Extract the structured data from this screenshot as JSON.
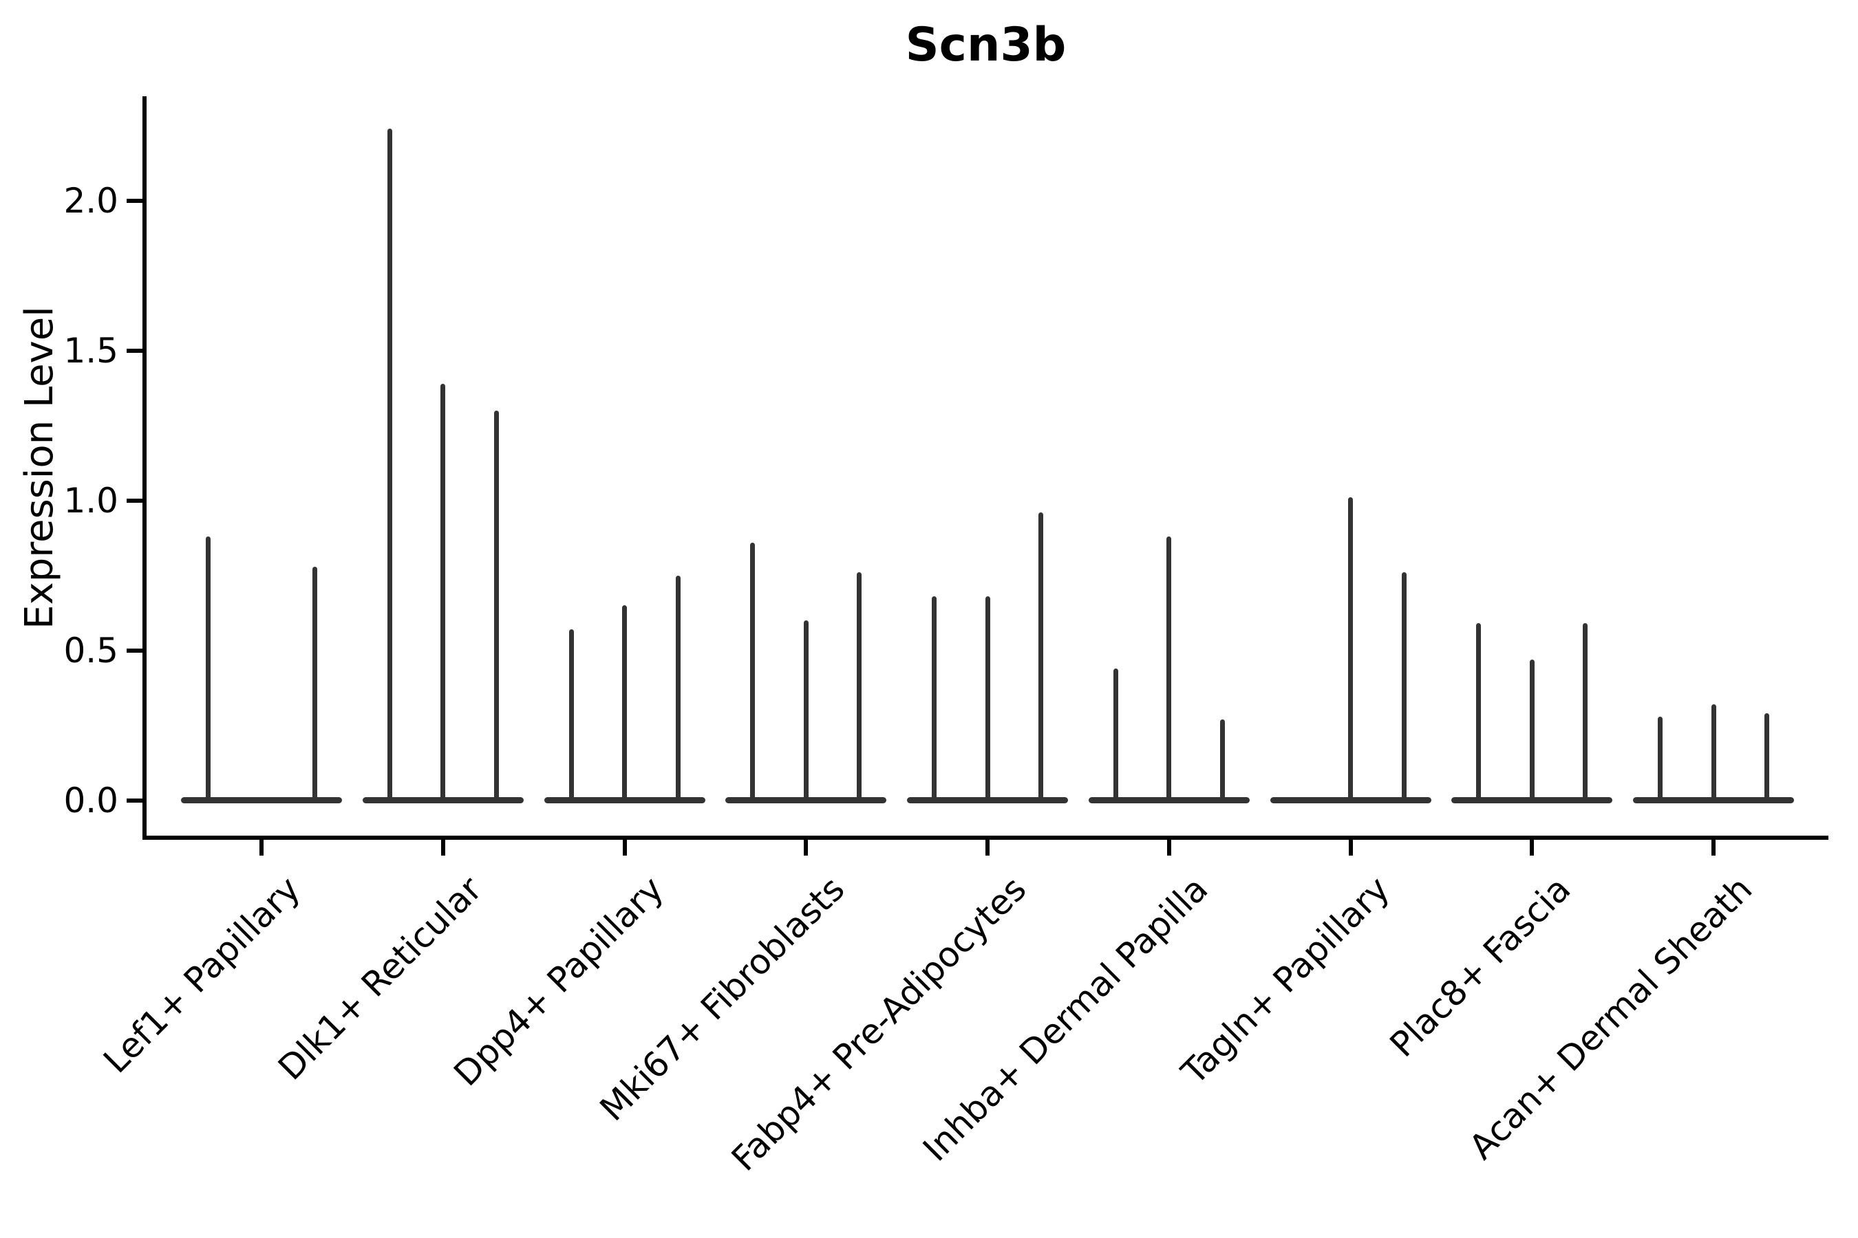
{
  "page": {
    "background": "#ffffff"
  },
  "chart_data": {
    "type": "violin",
    "title": "Scn3b",
    "ylabel": "Expression Level",
    "xlabel": "",
    "yticks": [
      "0.0",
      "0.5",
      "1.0",
      "1.5",
      "2.0"
    ],
    "ylim": [
      -0.11,
      2.35
    ],
    "grid": false,
    "legend": "none",
    "violins_per_category": 3,
    "categories": [
      "Lef1+ Papillary",
      "Dlk1+ Reticular",
      "Dpp4+ Papillary",
      "Mki67+ Fibroblasts",
      "Fabp4+ Pre-Adipocytes",
      "Inhba+ Dermal Papilla",
      "Tagln+ Papillary",
      "Plac8+ Fascia",
      "Acan+ Dermal Sheath"
    ],
    "series": [
      {
        "category": "Lef1+ Papillary",
        "violin_max_values": [
          0.88,
          0.0,
          0.78
        ]
      },
      {
        "category": "Dlk1+ Reticular",
        "violin_max_values": [
          2.24,
          1.39,
          1.3
        ]
      },
      {
        "category": "Dpp4+ Papillary",
        "violin_max_values": [
          0.57,
          0.65,
          0.75
        ]
      },
      {
        "category": "Mki67+ Fibroblasts",
        "violin_max_values": [
          0.86,
          0.6,
          0.76
        ]
      },
      {
        "category": "Fabp4+ Pre-Adipocytes",
        "violin_max_values": [
          0.68,
          0.68,
          0.96
        ]
      },
      {
        "category": "Inhba+ Dermal Papilla",
        "violin_max_values": [
          0.44,
          0.88,
          0.27
        ]
      },
      {
        "category": "Tagln+ Papillary",
        "violin_max_values": [
          0.0,
          1.01,
          0.76
        ]
      },
      {
        "category": "Plac8+ Fascia",
        "violin_max_values": [
          0.59,
          0.47,
          0.59
        ]
      },
      {
        "category": "Acan+ Dermal Sheath",
        "violin_max_values": [
          0.28,
          0.32,
          0.29
        ]
      }
    ],
    "colors": {
      "violin": "#333333",
      "axis": "#000000",
      "text": "#000000",
      "background": "#ffffff"
    }
  }
}
